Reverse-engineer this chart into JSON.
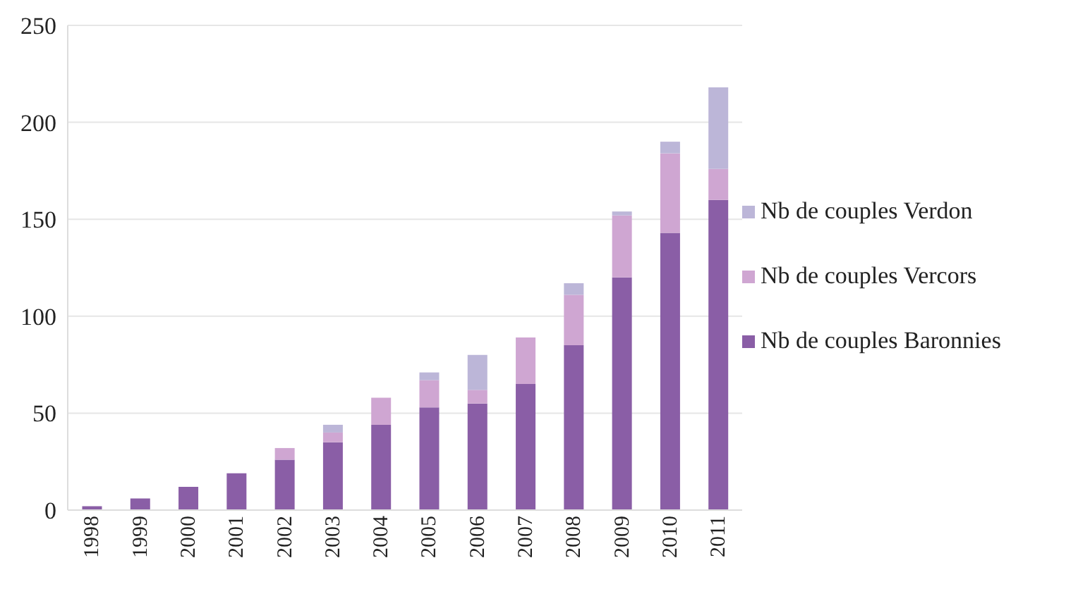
{
  "chart_data": {
    "type": "bar",
    "stacked": true,
    "categories": [
      "1998",
      "1999",
      "2000",
      "2001",
      "2002",
      "2003",
      "2004",
      "2005",
      "2006",
      "2007",
      "2008",
      "2009",
      "2010",
      "2011"
    ],
    "series": [
      {
        "name": "Nb de couples Baronnies",
        "color": "#8a5ea6",
        "values": [
          2,
          6,
          12,
          19,
          26,
          35,
          44,
          53,
          55,
          65,
          85,
          120,
          143,
          160
        ]
      },
      {
        "name": "Nb de couples Vercors",
        "color": "#cfa6d2",
        "values": [
          0,
          0,
          0,
          0,
          6,
          5,
          14,
          14,
          7,
          24,
          26,
          32,
          41,
          16
        ]
      },
      {
        "name": "Nb de couples Verdon",
        "color": "#bcb6d8",
        "values": [
          0,
          0,
          0,
          0,
          0,
          4,
          0,
          4,
          18,
          0,
          6,
          2,
          6,
          42
        ]
      }
    ],
    "ylim": [
      0,
      250
    ],
    "yticks": [
      0,
      50,
      100,
      150,
      200,
      250
    ],
    "grid": "y",
    "legend": "right"
  }
}
